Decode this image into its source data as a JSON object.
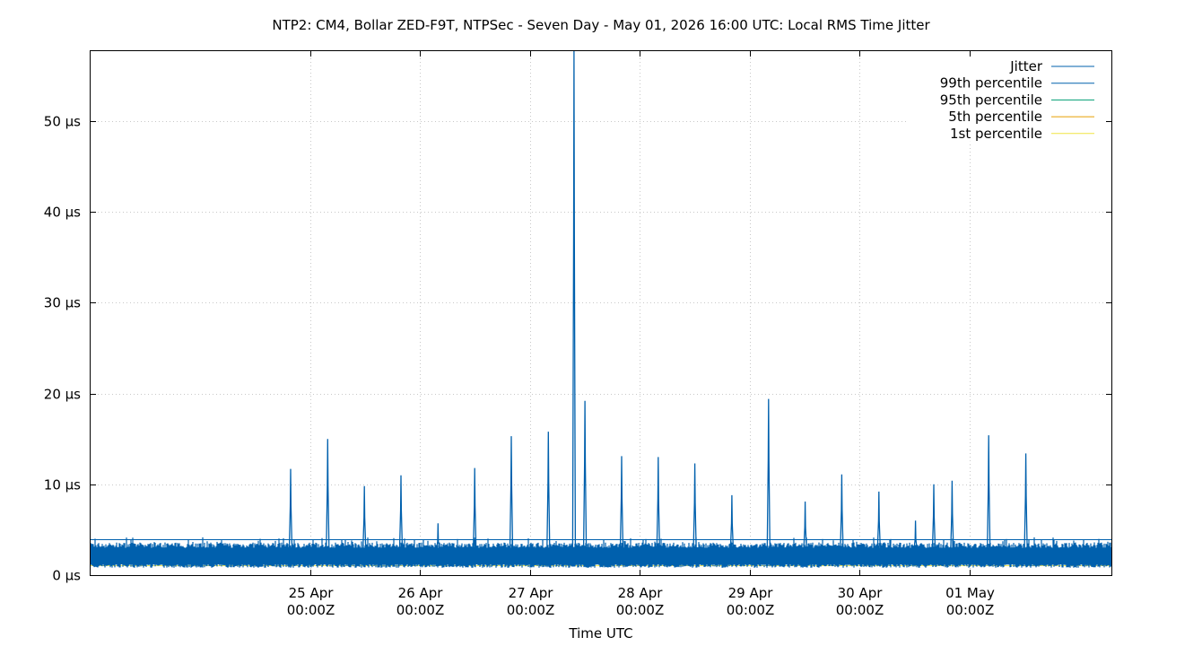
{
  "chart_data": {
    "type": "line",
    "title": "NTP2: CM4, Bollar ZED-F9T, NTPSec - Seven Day - May 01, 2026 16:00 UTC: Local RMS Time Jitter",
    "xlabel": "Time UTC",
    "ylabel": "",
    "x_range_hours": [
      -48,
      175
    ],
    "ylim": [
      0,
      57.7
    ],
    "grid": true,
    "legend_position": "top-right",
    "y_ticks": [
      {
        "value": 0,
        "label": "0 µs"
      },
      {
        "value": 10,
        "label": "10 µs"
      },
      {
        "value": 20,
        "label": "20 µs"
      },
      {
        "value": 30,
        "label": "30 µs"
      },
      {
        "value": 40,
        "label": "40 µs"
      },
      {
        "value": 50,
        "label": "50 µs"
      }
    ],
    "x_ticks": [
      {
        "hours": 0,
        "line1": "25 Apr",
        "line2": "00:00Z"
      },
      {
        "hours": 24,
        "line1": "26 Apr",
        "line2": "00:00Z"
      },
      {
        "hours": 48,
        "line1": "27 Apr",
        "line2": "00:00Z"
      },
      {
        "hours": 72,
        "line1": "28 Apr",
        "line2": "00:00Z"
      },
      {
        "hours": 96,
        "line1": "29 Apr",
        "line2": "00:00Z"
      },
      {
        "hours": 120,
        "line1": "30 Apr",
        "line2": "00:00Z"
      },
      {
        "hours": 144,
        "line1": "01 May",
        "line2": "00:00Z"
      }
    ],
    "series": [
      {
        "name": "Jitter",
        "color": "#0060ad",
        "baseline_low": 1.2,
        "baseline_high": 3.0,
        "spikes": [
          {
            "hours": -4.3,
            "value": 11.7
          },
          {
            "hours": 3.8,
            "value": 15.0
          },
          {
            "hours": 11.8,
            "value": 9.8
          },
          {
            "hours": 19.8,
            "value": 11.0
          },
          {
            "hours": 27.9,
            "value": 5.7
          },
          {
            "hours": 35.9,
            "value": 11.8
          },
          {
            "hours": 43.9,
            "value": 15.3
          },
          {
            "hours": 52.0,
            "value": 15.8
          },
          {
            "hours": 57.6,
            "value": 57.7
          },
          {
            "hours": 60.0,
            "value": 19.2
          },
          {
            "hours": 68.0,
            "value": 13.1
          },
          {
            "hours": 76.0,
            "value": 13.0
          },
          {
            "hours": 84.0,
            "value": 12.3
          },
          {
            "hours": 92.1,
            "value": 8.8
          },
          {
            "hours": 100.1,
            "value": 19.4
          },
          {
            "hours": 108.1,
            "value": 8.1
          },
          {
            "hours": 116.1,
            "value": 11.1
          },
          {
            "hours": 124.2,
            "value": 9.2
          },
          {
            "hours": 132.2,
            "value": 6.0
          },
          {
            "hours": 136.2,
            "value": 10.0
          },
          {
            "hours": 140.2,
            "value": 10.4
          },
          {
            "hours": 148.2,
            "value": 15.4
          },
          {
            "hours": 156.3,
            "value": 13.4
          }
        ]
      },
      {
        "name": "99th percentile",
        "color": "#0060ad",
        "value": 3.9
      },
      {
        "name": "95th percentile",
        "color": "#009e73",
        "value": 2.95
      },
      {
        "name": "5th percentile",
        "color": "#e69f00",
        "value": 1.25
      },
      {
        "name": "1st percentile",
        "color": "#f0e442",
        "value": 1.05
      }
    ]
  }
}
